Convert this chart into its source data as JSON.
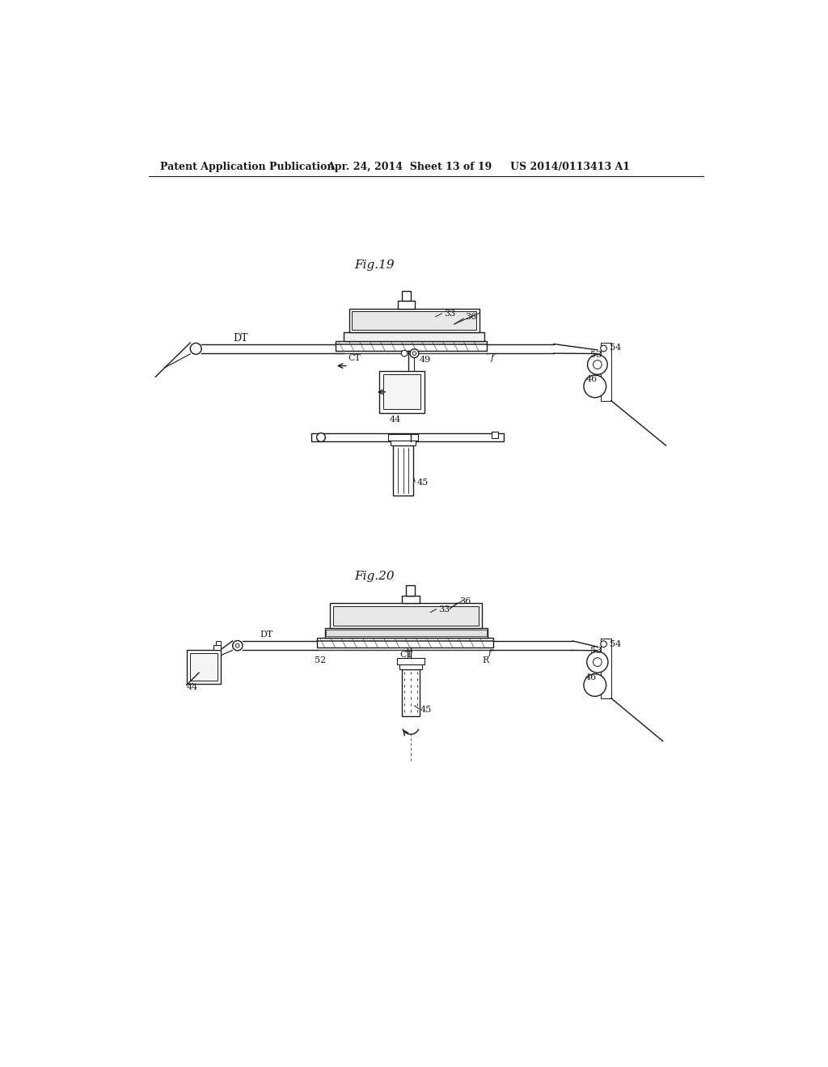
{
  "bg_color": "#ffffff",
  "line_color": "#1a1a1a",
  "header_text1": "Patent Application Publication",
  "header_text2": "Apr. 24, 2014  Sheet 13 of 19",
  "header_text3": "US 2014/0113413 A1",
  "fig19_label": "Fig.19",
  "fig20_label": "Fig.20"
}
